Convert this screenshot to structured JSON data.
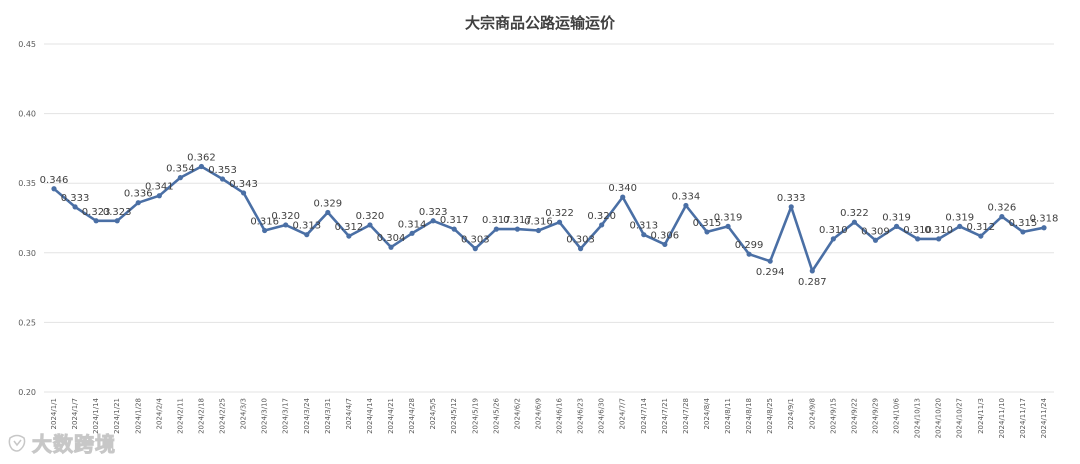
{
  "watermark": {
    "text": "大数跨境"
  },
  "chart_data": {
    "type": "line",
    "title": "大宗商品公路运输运价",
    "xlabel": "",
    "ylabel": "",
    "ylim": [
      0.2,
      0.45
    ],
    "yticks": [
      "0.20",
      "0.25",
      "0.30",
      "0.35",
      "0.40",
      "0.45"
    ],
    "grid": true,
    "color": "#4a6fa5",
    "categories": [
      "2024/1/1",
      "2024/1/7",
      "2024/1/14",
      "2024/1/21",
      "2024/1/28",
      "2024/2/4",
      "2024/2/11",
      "2024/2/18",
      "2024/2/25",
      "2024/3/3",
      "2024/3/10",
      "2024/3/17",
      "2024/3/24",
      "2024/3/31",
      "2024/4/7",
      "2024/4/14",
      "2024/4/21",
      "2024/4/28",
      "2024/5/5",
      "2024/5/12",
      "2024/5/19",
      "2024/5/26",
      "2024/6/2",
      "2024/6/9",
      "2024/6/16",
      "2024/6/23",
      "2024/6/30",
      "2024/7/7",
      "2024/7/14",
      "2024/7/21",
      "2024/7/28",
      "2024/8/4",
      "2024/8/11",
      "2024/8/18",
      "2024/8/25",
      "2024/9/1",
      "2024/9/8",
      "2024/9/15",
      "2024/9/22",
      "2024/9/29",
      "2024/10/6",
      "2024/10/13",
      "2024/10/20",
      "2024/10/27",
      "2024/11/3",
      "2024/11/10",
      "2024/11/17",
      "2024/11/24"
    ],
    "values": [
      0.346,
      0.333,
      0.323,
      0.323,
      0.336,
      0.341,
      0.354,
      0.362,
      0.353,
      0.343,
      0.316,
      0.32,
      0.313,
      0.329,
      0.312,
      0.32,
      0.304,
      0.314,
      0.323,
      0.317,
      0.303,
      0.317,
      0.317,
      0.316,
      0.322,
      0.303,
      0.32,
      0.34,
      0.313,
      0.306,
      0.334,
      0.315,
      0.319,
      0.299,
      0.294,
      0.333,
      0.287,
      0.31,
      0.322,
      0.309,
      0.319,
      0.31,
      0.31,
      0.319,
      0.312,
      0.326,
      0.315,
      0.318
    ],
    "data_labels": [
      "0.346",
      "0.333",
      "0.323",
      "0.323",
      "0.336",
      "0.341",
      "0.354",
      "0.362",
      "0.353",
      "0.343",
      "0.316",
      "0.320",
      "0.313",
      "0.329",
      "0.312",
      "0.320",
      "0.304",
      "0.314",
      "0.323",
      "0.317",
      "0.303",
      "0.317",
      "0.317",
      "0.316",
      "0.322",
      "0.303",
      "0.320",
      "0.340",
      "0.313",
      "0.306",
      "0.334",
      "0.315",
      "0.319",
      "0.299",
      "0.294",
      "0.333",
      "0.287",
      "0.310",
      "0.322",
      "0.309",
      "0.319",
      "0.310",
      "0.310",
      "0.319",
      "0.312",
      "0.326",
      "0.315",
      "0.318"
    ]
  }
}
